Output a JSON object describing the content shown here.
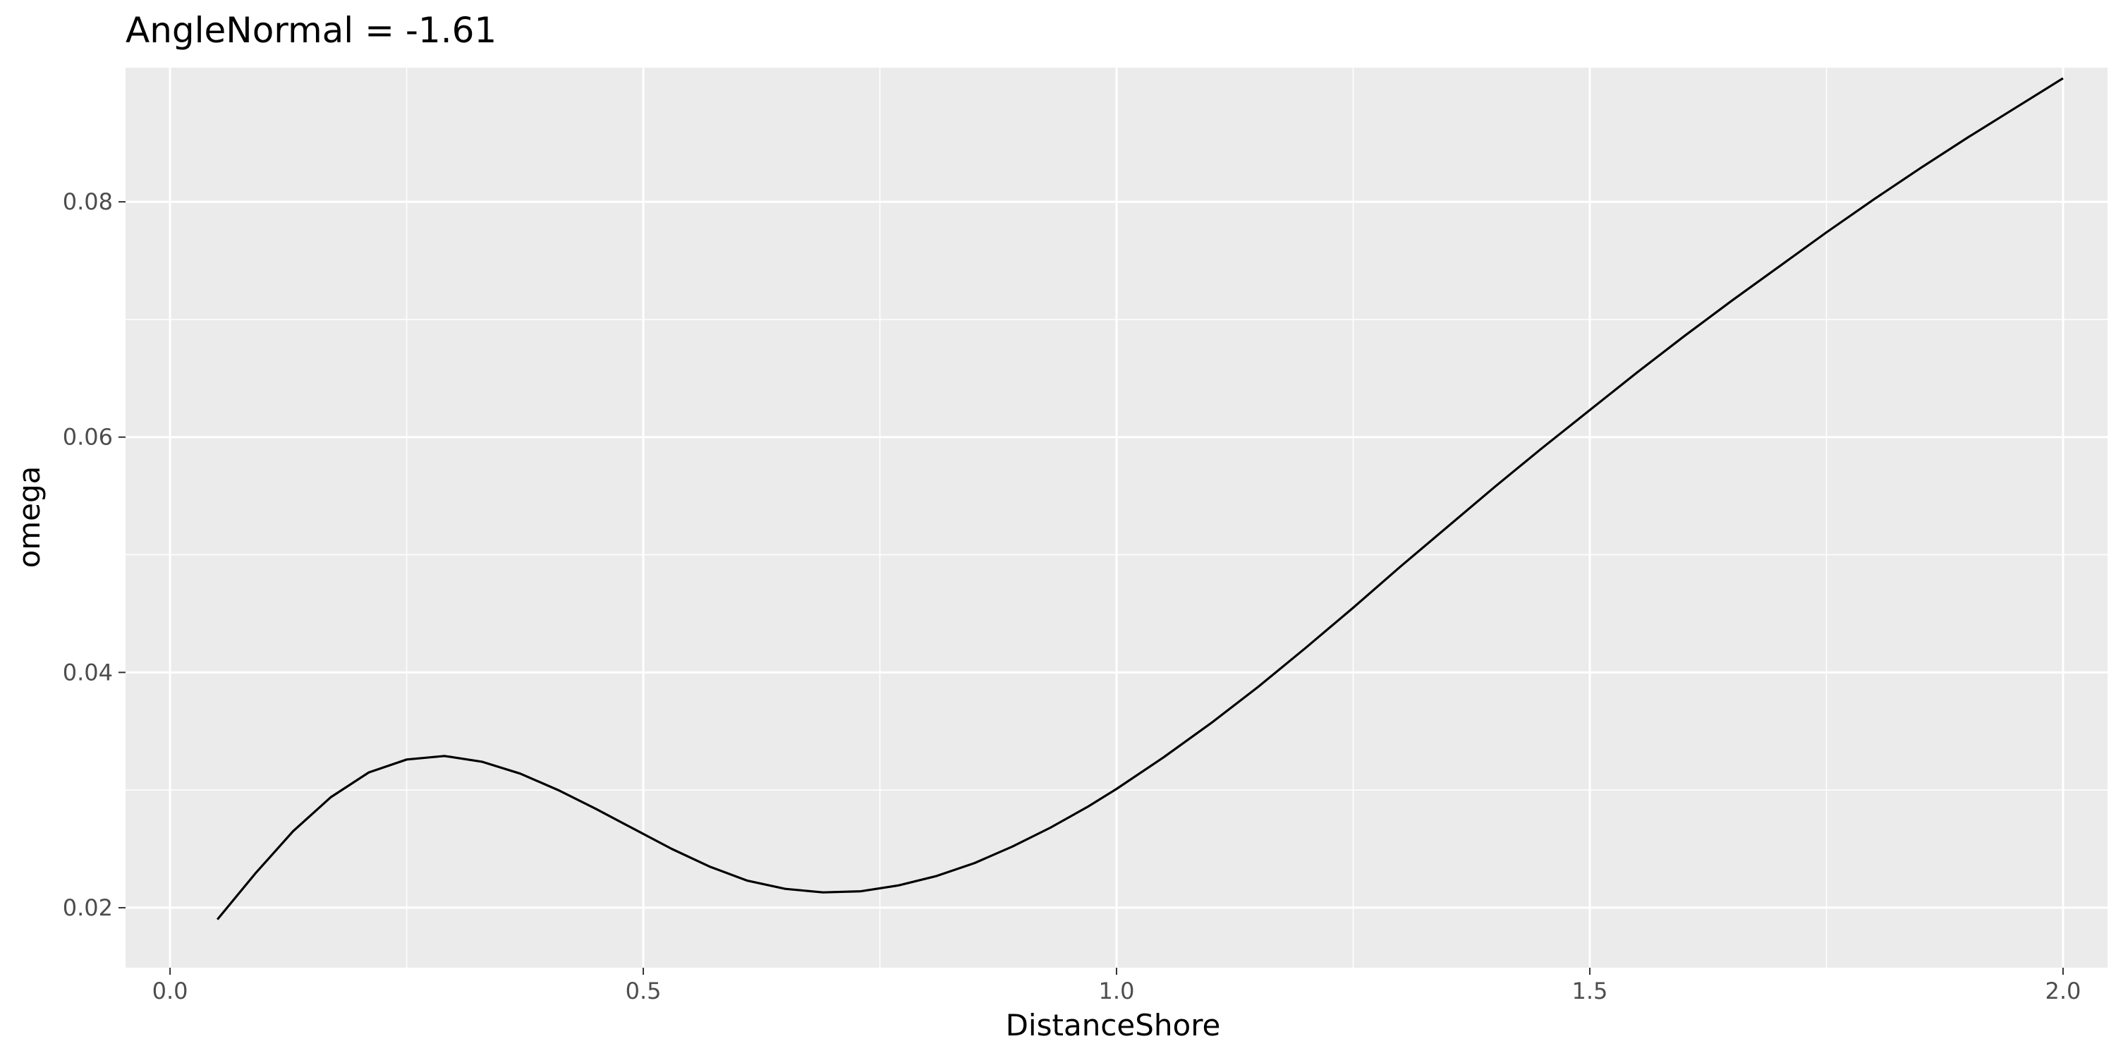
{
  "chart_data": {
    "type": "line",
    "title": "AngleNormal = -1.61",
    "xlabel": "DistanceShore",
    "ylabel": "omega",
    "xlim": [
      -0.047,
      2.047
    ],
    "ylim": [
      0.0149,
      0.0914
    ],
    "x_ticks": [
      0.0,
      0.5,
      1.0,
      1.5,
      2.0
    ],
    "x_tick_labels": [
      "0.0",
      "0.5",
      "1.0",
      "1.5",
      "2.0"
    ],
    "y_ticks": [
      0.02,
      0.04,
      0.06,
      0.08
    ],
    "y_tick_labels": [
      "0.02",
      "0.04",
      "0.06",
      "0.08"
    ],
    "grid": true,
    "legend": "none",
    "colors": {
      "panel": "#EBEBEB",
      "grid": "#FFFFFF",
      "line": "#000000",
      "tick": "#333333"
    },
    "series": [
      {
        "x": [
          0.05,
          0.09,
          0.13,
          0.17,
          0.21,
          0.25,
          0.29,
          0.33,
          0.37,
          0.41,
          0.45,
          0.49,
          0.53,
          0.57,
          0.61,
          0.65,
          0.69,
          0.73,
          0.77,
          0.81,
          0.85,
          0.89,
          0.93,
          0.97,
          1.0,
          1.05,
          1.1,
          1.15,
          1.2,
          1.25,
          1.3,
          1.35,
          1.4,
          1.45,
          1.5,
          1.55,
          1.6,
          1.65,
          1.7,
          1.75,
          1.8,
          1.85,
          1.9,
          1.95,
          2.0
        ],
        "values": [
          0.019,
          0.0229,
          0.0265,
          0.0294,
          0.0315,
          0.0326,
          0.0329,
          0.0324,
          0.0314,
          0.03,
          0.0284,
          0.0267,
          0.025,
          0.0235,
          0.0223,
          0.0216,
          0.0213,
          0.0214,
          0.0219,
          0.0227,
          0.0238,
          0.0252,
          0.0268,
          0.0286,
          0.0301,
          0.0328,
          0.0357,
          0.0388,
          0.0421,
          0.0455,
          0.049,
          0.0524,
          0.0558,
          0.0591,
          0.0623,
          0.0655,
          0.0686,
          0.0716,
          0.0745,
          0.0774,
          0.0802,
          0.0829,
          0.0855,
          0.088,
          0.0905
        ]
      }
    ]
  }
}
